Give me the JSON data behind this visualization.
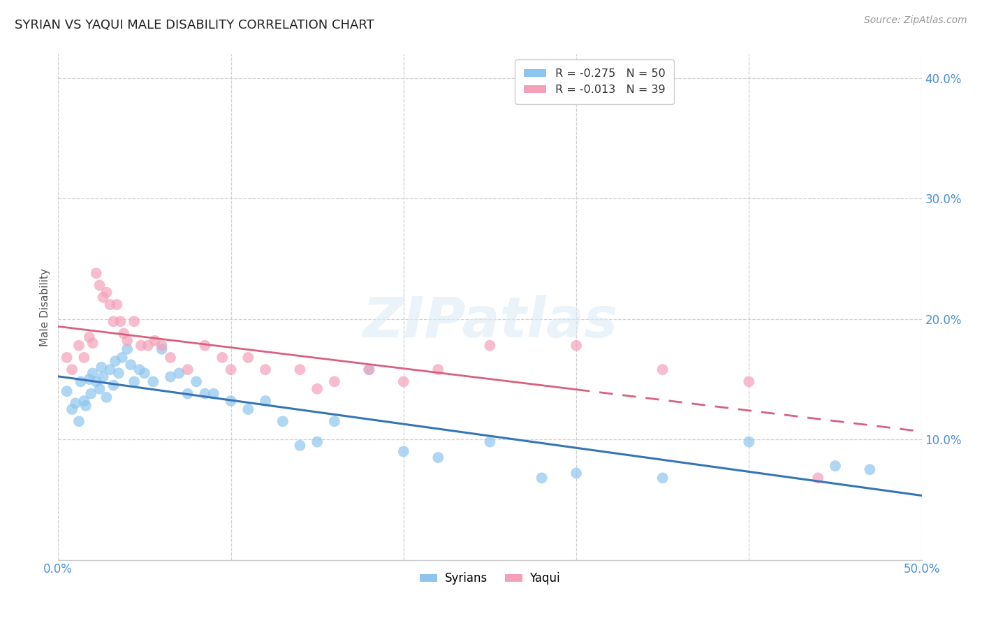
{
  "title": "SYRIAN VS YAQUI MALE DISABILITY CORRELATION CHART",
  "source": "Source: ZipAtlas.com",
  "ylabel": "Male Disability",
  "xlim": [
    0.0,
    0.5
  ],
  "ylim": [
    0.0,
    0.42
  ],
  "syrians_color": "#8ec5ee",
  "yaqui_color": "#f4a0b8",
  "trendline_syrians_color": "#3575b5",
  "trendline_yaqui_color": "#d96080",
  "watermark_text": "ZIPatlas",
  "r_syrians": "-0.275",
  "n_syrians": "50",
  "r_yaqui": "-0.013",
  "n_yaqui": "39",
  "syrians_x": [
    0.005,
    0.008,
    0.01,
    0.012,
    0.013,
    0.015,
    0.016,
    0.018,
    0.019,
    0.02,
    0.022,
    0.024,
    0.025,
    0.026,
    0.028,
    0.03,
    0.032,
    0.033,
    0.035,
    0.037,
    0.04,
    0.042,
    0.044,
    0.047,
    0.05,
    0.055,
    0.06,
    0.065,
    0.07,
    0.075,
    0.08,
    0.085,
    0.09,
    0.1,
    0.11,
    0.12,
    0.13,
    0.14,
    0.15,
    0.16,
    0.18,
    0.2,
    0.22,
    0.25,
    0.28,
    0.3,
    0.35,
    0.4,
    0.45,
    0.47
  ],
  "syrians_y": [
    0.14,
    0.125,
    0.13,
    0.115,
    0.148,
    0.132,
    0.128,
    0.15,
    0.138,
    0.155,
    0.148,
    0.142,
    0.16,
    0.152,
    0.135,
    0.158,
    0.145,
    0.165,
    0.155,
    0.168,
    0.175,
    0.162,
    0.148,
    0.158,
    0.155,
    0.148,
    0.175,
    0.152,
    0.155,
    0.138,
    0.148,
    0.138,
    0.138,
    0.132,
    0.125,
    0.132,
    0.115,
    0.095,
    0.098,
    0.115,
    0.158,
    0.09,
    0.085,
    0.098,
    0.068,
    0.072,
    0.068,
    0.098,
    0.078,
    0.075
  ],
  "yaqui_x": [
    0.005,
    0.008,
    0.012,
    0.015,
    0.018,
    0.02,
    0.022,
    0.024,
    0.026,
    0.028,
    0.03,
    0.032,
    0.034,
    0.036,
    0.038,
    0.04,
    0.044,
    0.048,
    0.052,
    0.056,
    0.06,
    0.065,
    0.075,
    0.085,
    0.095,
    0.1,
    0.11,
    0.12,
    0.14,
    0.15,
    0.16,
    0.18,
    0.2,
    0.22,
    0.25,
    0.3,
    0.35,
    0.4,
    0.44
  ],
  "yaqui_y": [
    0.168,
    0.158,
    0.178,
    0.168,
    0.185,
    0.18,
    0.238,
    0.228,
    0.218,
    0.222,
    0.212,
    0.198,
    0.212,
    0.198,
    0.188,
    0.182,
    0.198,
    0.178,
    0.178,
    0.182,
    0.178,
    0.168,
    0.158,
    0.178,
    0.168,
    0.158,
    0.168,
    0.158,
    0.158,
    0.142,
    0.148,
    0.158,
    0.148,
    0.158,
    0.178,
    0.178,
    0.158,
    0.148,
    0.068
  ],
  "trendline_split_x": 0.3,
  "ytick_positions": [
    0.0,
    0.1,
    0.2,
    0.3,
    0.4
  ],
  "xtick_positions": [
    0.0,
    0.1,
    0.2,
    0.3,
    0.4,
    0.5
  ]
}
